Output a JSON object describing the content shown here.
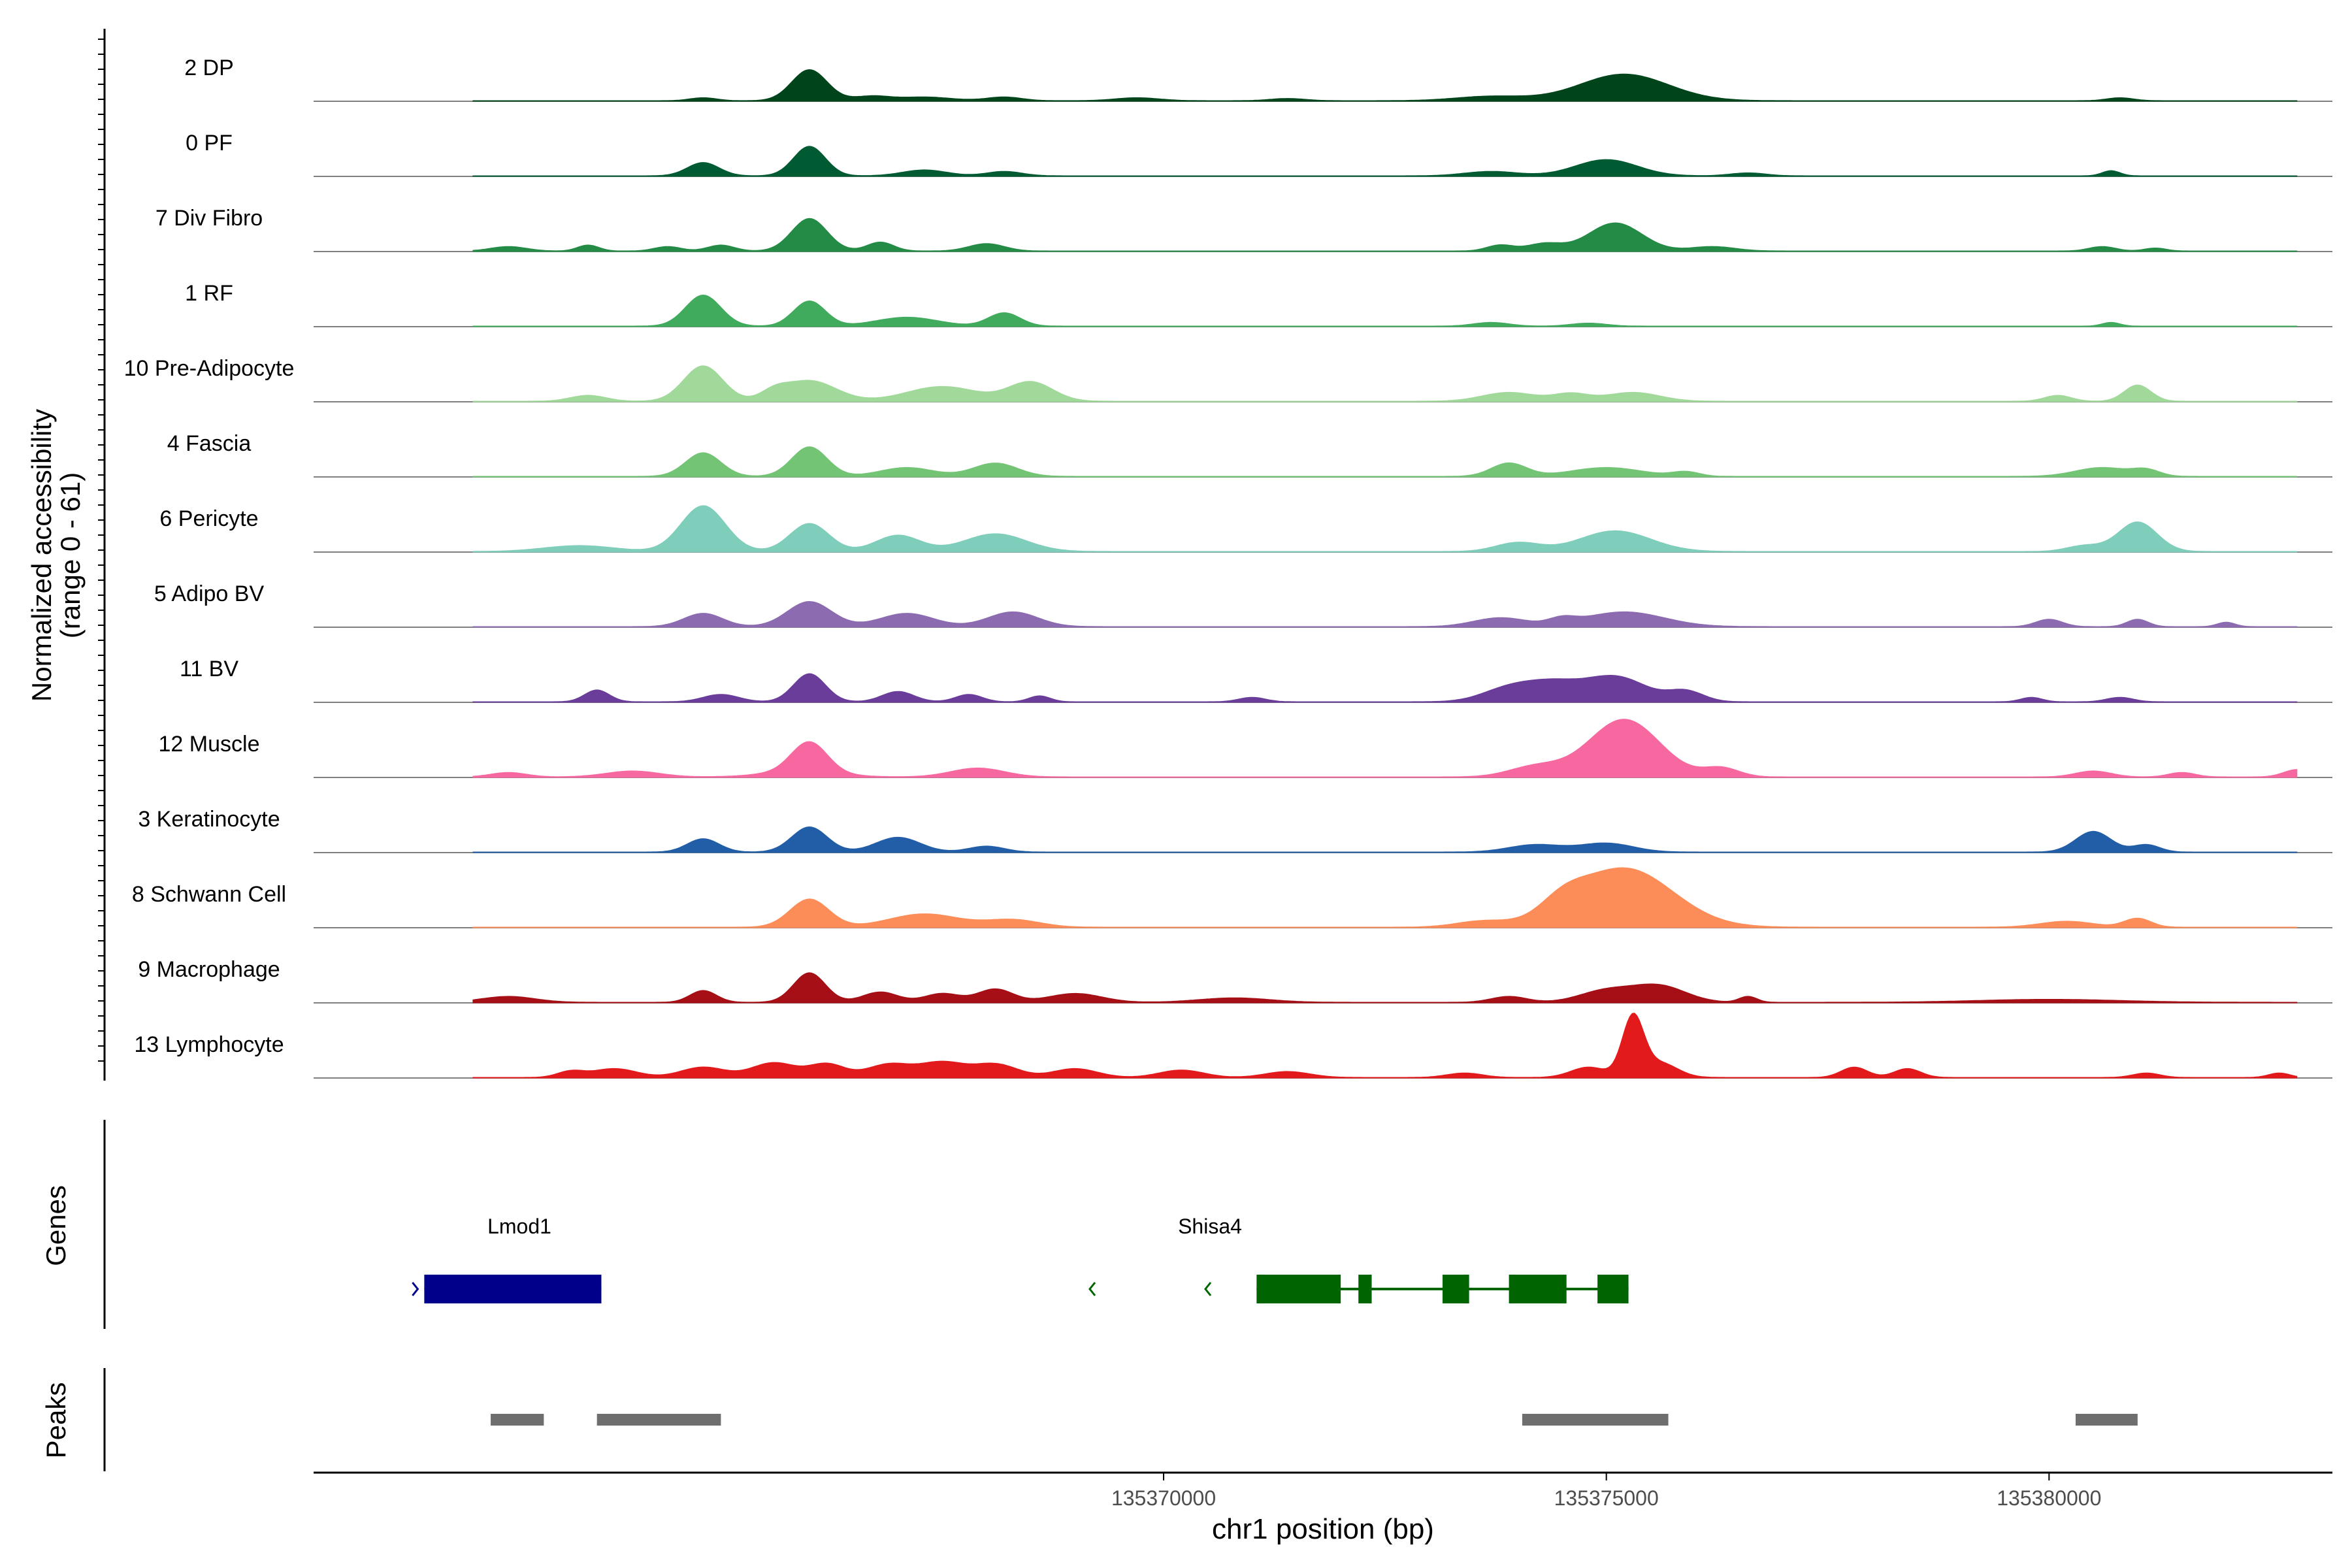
{
  "chart_data": {
    "type": "area",
    "title": "",
    "xlabel": "chr1 position (bp)",
    "ylabel": "Normalized accessibility (range 0 - 61)",
    "ylabel_line1": "Normalized accessibility",
    "ylabel_line2": "(range 0 - 61)",
    "xlim": [
      135360400,
      135383200
    ],
    "ylim": [
      0,
      61
    ],
    "x_ticks": [
      135370000,
      135375000,
      135380000
    ],
    "x_tick_labels": [
      "135370000",
      "135375000",
      "135380000"
    ],
    "genes_label": "Genes",
    "peaks_label": "Peaks",
    "tracks": [
      {
        "name": "2 DP",
        "color": "#00441b",
        "peaks": [
          [
            135366000,
            200,
            42
          ],
          [
            135375200,
            500,
            36
          ],
          [
            135373700,
            400,
            6
          ],
          [
            135364800,
            150,
            4
          ],
          [
            135369700,
            250,
            4
          ],
          [
            135371400,
            200,
            3
          ],
          [
            135367300,
            300,
            5
          ],
          [
            135366700,
            200,
            6
          ],
          [
            135368200,
            200,
            5
          ],
          [
            135380800,
            150,
            4
          ]
        ]
      },
      {
        "name": "0 PF",
        "color": "#005a32",
        "peaks": [
          [
            135366000,
            180,
            40
          ],
          [
            135364800,
            180,
            18
          ],
          [
            135375000,
            350,
            22
          ],
          [
            135367300,
            250,
            8
          ],
          [
            135380700,
            100,
            7
          ],
          [
            135373700,
            300,
            6
          ],
          [
            135368200,
            200,
            6
          ],
          [
            135376600,
            200,
            4
          ]
        ]
      },
      {
        "name": "7 Div Fibro",
        "color": "#238b45",
        "peaks": [
          [
            135366000,
            200,
            44
          ],
          [
            135375100,
            300,
            38
          ],
          [
            135366800,
            150,
            12
          ],
          [
            135368000,
            200,
            10
          ],
          [
            135365000,
            150,
            8
          ],
          [
            135364400,
            150,
            6
          ],
          [
            135363500,
            120,
            8
          ],
          [
            135362600,
            200,
            6
          ],
          [
            135374300,
            200,
            10
          ],
          [
            135373800,
            150,
            8
          ],
          [
            135376200,
            250,
            6
          ],
          [
            135380600,
            150,
            6
          ],
          [
            135381200,
            120,
            4
          ]
        ]
      },
      {
        "name": "1 RF",
        "color": "#41ab5d",
        "peaks": [
          [
            135364800,
            200,
            42
          ],
          [
            135366000,
            180,
            34
          ],
          [
            135367100,
            350,
            12
          ],
          [
            135368200,
            180,
            18
          ],
          [
            135373700,
            200,
            5
          ],
          [
            135374800,
            200,
            4
          ],
          [
            135380700,
            100,
            5
          ]
        ]
      },
      {
        "name": "10 Pre-Adipocyte",
        "color": "#a1d99b",
        "peaks": [
          [
            135364800,
            220,
            48
          ],
          [
            135366000,
            300,
            28
          ],
          [
            135367500,
            400,
            20
          ],
          [
            135368500,
            250,
            26
          ],
          [
            135363500,
            200,
            8
          ],
          [
            135365600,
            150,
            10
          ],
          [
            135373900,
            300,
            12
          ],
          [
            135374600,
            200,
            10
          ],
          [
            135375300,
            300,
            12
          ],
          [
            135381000,
            150,
            22
          ],
          [
            135380100,
            150,
            8
          ]
        ]
      },
      {
        "name": "4 Fascia",
        "color": "#74c476",
        "peaks": [
          [
            135364800,
            200,
            32
          ],
          [
            135366000,
            200,
            40
          ],
          [
            135367100,
            300,
            12
          ],
          [
            135368100,
            250,
            18
          ],
          [
            135373900,
            200,
            18
          ],
          [
            135375000,
            400,
            12
          ],
          [
            135375900,
            150,
            6
          ],
          [
            135380600,
            300,
            12
          ],
          [
            135381100,
            150,
            8
          ]
        ]
      },
      {
        "name": "6 Pericyte",
        "color": "#7fcdbb",
        "peaks": [
          [
            135364800,
            250,
            62
          ],
          [
            135366000,
            220,
            38
          ],
          [
            135367000,
            250,
            22
          ],
          [
            135368100,
            350,
            24
          ],
          [
            135363400,
            400,
            8
          ],
          [
            135374000,
            250,
            12
          ],
          [
            135375100,
            400,
            28
          ],
          [
            135381000,
            220,
            40
          ],
          [
            135380400,
            200,
            8
          ]
        ]
      },
      {
        "name": "5 Adipo BV",
        "color": "#8c6bb1",
        "peaks": [
          [
            135364800,
            220,
            18
          ],
          [
            135366000,
            250,
            34
          ],
          [
            135367100,
            300,
            18
          ],
          [
            135368300,
            280,
            20
          ],
          [
            135373800,
            300,
            12
          ],
          [
            135375200,
            450,
            20
          ],
          [
            135374500,
            150,
            8
          ],
          [
            135380000,
            150,
            10
          ],
          [
            135381000,
            120,
            10
          ],
          [
            135382000,
            100,
            6
          ]
        ]
      },
      {
        "name": "11 BV",
        "color": "#6a3d9a",
        "peaks": [
          [
            135363600,
            140,
            16
          ],
          [
            135365000,
            200,
            10
          ],
          [
            135366000,
            180,
            38
          ],
          [
            135367000,
            180,
            14
          ],
          [
            135367800,
            150,
            10
          ],
          [
            135368600,
            120,
            8
          ],
          [
            135373900,
            300,
            18
          ],
          [
            135374400,
            300,
            22
          ],
          [
            135375100,
            350,
            34
          ],
          [
            135375900,
            200,
            14
          ],
          [
            135371000,
            150,
            6
          ],
          [
            135379800,
            120,
            6
          ],
          [
            135380800,
            150,
            6
          ]
        ]
      },
      {
        "name": "12 Muscle",
        "color": "#f768a1",
        "peaks": [
          [
            135366000,
            200,
            40
          ],
          [
            135375200,
            400,
            78
          ],
          [
            135374200,
            300,
            14
          ],
          [
            135367900,
            300,
            12
          ],
          [
            135364000,
            300,
            8
          ],
          [
            135362600,
            200,
            6
          ],
          [
            135365900,
            400,
            8
          ],
          [
            135376300,
            200,
            12
          ],
          [
            135380500,
            200,
            8
          ],
          [
            135381500,
            150,
            6
          ],
          [
            135382800,
            150,
            10
          ]
        ]
      },
      {
        "name": "3 Keratinocyte",
        "color": "#225ea8",
        "peaks": [
          [
            135364800,
            180,
            18
          ],
          [
            135366000,
            200,
            34
          ],
          [
            135367000,
            250,
            20
          ],
          [
            135368000,
            200,
            8
          ],
          [
            135374200,
            300,
            10
          ],
          [
            135375000,
            300,
            12
          ],
          [
            135380500,
            200,
            28
          ],
          [
            135381100,
            150,
            10
          ]
        ]
      },
      {
        "name": "8 Schwann Cell",
        "color": "#fc8d59",
        "peaks": [
          [
            135366000,
            220,
            38
          ],
          [
            135367300,
            400,
            18
          ],
          [
            135368300,
            300,
            10
          ],
          [
            135374500,
            250,
            20
          ],
          [
            135375200,
            550,
            80
          ],
          [
            135373600,
            300,
            8
          ],
          [
            135380200,
            300,
            8
          ],
          [
            135381000,
            150,
            12
          ]
        ]
      },
      {
        "name": "9 Macrophage",
        "color": "#a50f15",
        "peaks": [
          [
            135366000,
            180,
            40
          ],
          [
            135364800,
            150,
            16
          ],
          [
            135366800,
            200,
            14
          ],
          [
            135367500,
            200,
            12
          ],
          [
            135368100,
            200,
            18
          ],
          [
            135369000,
            300,
            12
          ],
          [
            135375000,
            300,
            16
          ],
          [
            135375600,
            300,
            22
          ],
          [
            135362600,
            300,
            8
          ],
          [
            135373900,
            200,
            8
          ],
          [
            135370800,
            400,
            6
          ],
          [
            135376600,
            100,
            8
          ],
          [
            135380000,
            800,
            4
          ]
        ]
      },
      {
        "name": "13 Lymphocyte",
        "color": "#e31a1c",
        "peaks": [
          [
            135363800,
            250,
            12
          ],
          [
            135364800,
            250,
            14
          ],
          [
            135365600,
            250,
            20
          ],
          [
            135366200,
            200,
            18
          ],
          [
            135366900,
            250,
            18
          ],
          [
            135367500,
            250,
            20
          ],
          [
            135368100,
            250,
            18
          ],
          [
            135369000,
            250,
            12
          ],
          [
            135370200,
            250,
            10
          ],
          [
            135371400,
            250,
            8
          ],
          [
            135374800,
            200,
            14
          ],
          [
            135375300,
            120,
            80
          ],
          [
            135375600,
            200,
            20
          ],
          [
            135377800,
            150,
            14
          ],
          [
            135378400,
            150,
            12
          ],
          [
            135381100,
            150,
            6
          ],
          [
            135382600,
            120,
            6
          ],
          [
            135363300,
            150,
            8
          ],
          [
            135373400,
            200,
            6
          ]
        ]
      }
    ],
    "genes": [
      {
        "name": "Lmod1",
        "color": "#00008b",
        "strand": "+",
        "start": 135361650,
        "end": 135363650,
        "exons": [
          [
            135361650,
            135363650
          ]
        ]
      },
      {
        "name": "Shisa4",
        "color": "#006400",
        "strand": "-",
        "start": 135371050,
        "end": 135375250,
        "exons": [
          [
            135371050,
            135372000
          ],
          [
            135372200,
            135372350
          ],
          [
            135373150,
            135373450
          ],
          [
            135373900,
            135374550
          ],
          [
            135374900,
            135375250
          ]
        ]
      }
    ],
    "peaks": [
      [
        135362400,
        135363000
      ],
      [
        135363600,
        135365000
      ],
      [
        135374050,
        135375700
      ],
      [
        135380300,
        135381000
      ]
    ]
  }
}
